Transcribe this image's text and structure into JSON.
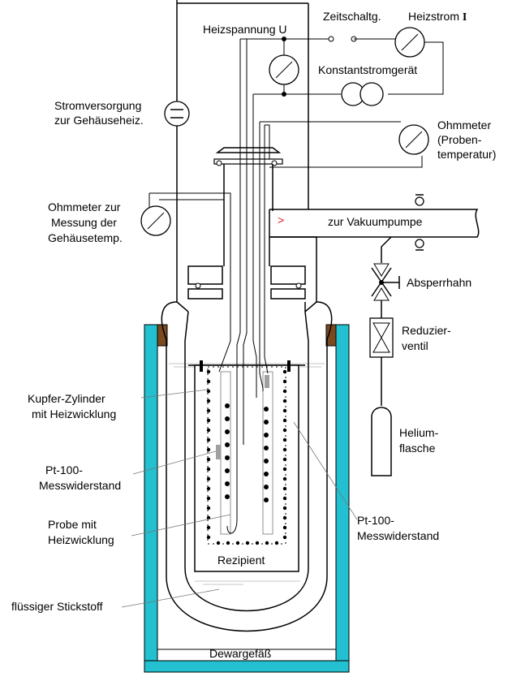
{
  "labels": {
    "heizspannung": "Heizspannung U",
    "zeitschaltg": "Zeitschaltg.",
    "heizstrom": "Heizstrom",
    "heizstrom_symbol": "I",
    "konstantstrom": "Konstantstromgerät",
    "stromversorgung_1": "Stromversorgung",
    "stromversorgung_2": "zur Gehäuseheiz.",
    "ohm_proben_1": "Ohmmeter",
    "ohm_proben_2": "(Proben-",
    "ohm_proben_3": "temperatur)",
    "ohm_gehaeuse_1": "Ohmmeter zur",
    "ohm_gehaeuse_2": "Messung der",
    "ohm_gehaeuse_3": "Gehäusetemp.",
    "vakuum": "zur Vakuumpumpe",
    "absperrhahn": "Absperrhahn",
    "reduzier_1": "Reduzier-",
    "reduzier_2": "ventil",
    "helium_1": "Helium-",
    "helium_2": "flasche",
    "kupfer_1": "Kupfer-Zylinder",
    "kupfer_2": "mit Heizwicklung",
    "pt100_left_1": "Pt-100-",
    "pt100_left_2": "Messwiderstand",
    "probe_1": "Probe mit",
    "probe_2": "Heizwicklung",
    "pt100_right_1": "Pt-100-",
    "pt100_right_2": "Messwiderstand",
    "rezipient": "Rezipient",
    "stickstoff": "flüssiger Stickstoff",
    "dewar": "Dewargefäß"
  },
  "colors": {
    "dewar_wall": "#22c0d0",
    "seal": "#7a4a1e",
    "flow_arrow": "#e02020",
    "sensor": "#a0a0a0",
    "liquid_line": "#b0b0b0"
  }
}
